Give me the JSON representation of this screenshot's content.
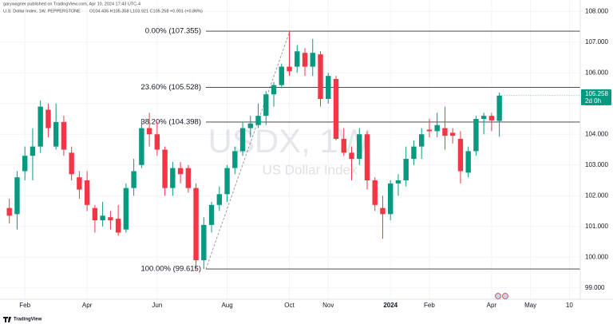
{
  "publisher": "garywagner published on TradingView.com, Apr 10, 2024 17:43 UTC-4",
  "footer": "TradingView",
  "chart_data": {
    "type": "candlestick",
    "title": "U.S. Dollar Index, 1W, PEPPERSTONE",
    "ohlc_text": "O104.435 H105.358 L103.921 C105.258 +0.901 (+0.86%)",
    "watermark": "USDX, 1W",
    "watermark_subtitle": "US Dollar Index",
    "countdown": "2d 0h",
    "up_color": "#089981",
    "down_color": "#f23645",
    "grid": true,
    "xlim": [
      -1.2,
      73.4
    ],
    "xticks": [
      {
        "value": 2,
        "label": "Feb"
      },
      {
        "value": 10,
        "label": "Apr"
      },
      {
        "value": 19,
        "label": "Jun"
      },
      {
        "value": 28,
        "label": "Aug"
      },
      {
        "value": 36,
        "label": "Oct"
      },
      {
        "value": 41,
        "label": "Nov"
      },
      {
        "value": 49,
        "label": "2024"
      },
      {
        "value": 54,
        "label": "Feb"
      },
      {
        "value": 62,
        "label": "Apr"
      },
      {
        "value": 67,
        "label": "May"
      },
      {
        "value": 72,
        "label": "10"
      }
    ],
    "ylim": [
      98.63,
      108.37
    ],
    "yticks": [
      {
        "value": 99,
        "label": "99.000"
      },
      {
        "value": 100,
        "label": "100.000"
      },
      {
        "value": 101,
        "label": "101.000"
      },
      {
        "value": 102,
        "label": "102.000"
      },
      {
        "value": 103,
        "label": "103.000"
      },
      {
        "value": 104,
        "label": "104.000"
      },
      {
        "value": 105,
        "label": "105.000"
      },
      {
        "value": 106,
        "label": "106.000"
      },
      {
        "value": 107,
        "label": "107.000"
      },
      {
        "value": 108,
        "label": "108.000"
      }
    ],
    "series": [
      {
        "open": [
          101.6,
          101.4,
          102.8,
          103.3,
          103.6,
          104.8,
          103.6,
          104.4,
          103.4,
          102.6,
          102.5,
          101.6,
          101.2,
          101.3,
          101.25,
          100.9,
          102.25,
          103.0,
          104.2,
          104.0,
          103.5,
          102.25,
          102.9,
          102.9,
          102.25,
          99.9,
          101.05,
          101.7,
          102.05,
          102.9,
          103.45,
          104.2,
          104.3,
          104.6,
          105.3,
          105.6,
          106.2,
          106.2,
          106.65,
          106.2,
          106.6,
          105.15,
          105.8,
          103.85,
          103.4,
          103.2,
          104.0,
          102.5,
          101.6,
          101.4,
          102.4,
          102.5,
          103.2,
          103.6,
          104.15,
          104.1,
          104.2,
          104.05,
          103.85,
          102.75,
          103.45,
          104.5,
          104.6,
          104.435
        ],
        "high": [
          101.9,
          102.8,
          103.6,
          104.2,
          105.1,
          105.0,
          105.0,
          104.6,
          103.6,
          102.8,
          102.8,
          101.7,
          101.8,
          101.5,
          101.7,
          102.4,
          103.2,
          104.5,
          104.7,
          104.4,
          103.6,
          103.1,
          103.1,
          103.0,
          102.4,
          101.3,
          101.8,
          102.3,
          103.0,
          103.6,
          104.4,
          104.6,
          105.0,
          105.4,
          105.7,
          106.3,
          107.355,
          106.9,
          106.8,
          107.1,
          106.7,
          106.0,
          105.9,
          104.2,
          103.6,
          104.2,
          104.1,
          102.6,
          102.0,
          102.5,
          102.7,
          103.6,
          103.8,
          104.2,
          104.5,
          104.7,
          104.9,
          104.2,
          104.1,
          103.6,
          104.6,
          104.7,
          104.7,
          105.358
        ],
        "low": [
          101.1,
          100.9,
          102.5,
          102.5,
          103.4,
          103.9,
          103.5,
          103.3,
          102.5,
          101.9,
          101.5,
          100.8,
          101.0,
          100.9,
          100.7,
          100.8,
          102.0,
          102.9,
          103.6,
          103.3,
          102.0,
          102.0,
          102.4,
          102.1,
          99.6,
          99.615,
          100.8,
          101.5,
          101.8,
          102.7,
          103.3,
          103.9,
          104.2,
          104.3,
          104.9,
          105.5,
          105.9,
          106.0,
          105.9,
          105.9,
          104.9,
          105.0,
          103.8,
          103.3,
          102.5,
          103.0,
          102.2,
          101.5,
          100.6,
          101.2,
          102.0,
          102.3,
          103.0,
          103.2,
          103.9,
          103.9,
          103.5,
          103.7,
          102.4,
          102.6,
          103.3,
          104.0,
          104.1,
          103.921
        ],
        "close": [
          101.35,
          102.6,
          103.3,
          103.6,
          104.9,
          104.2,
          104.4,
          103.5,
          102.7,
          102.2,
          101.7,
          101.2,
          101.35,
          101.2,
          100.8,
          102.25,
          102.8,
          104.2,
          104.0,
          103.5,
          102.25,
          102.9,
          102.7,
          102.25,
          99.9,
          101.05,
          101.7,
          102.05,
          102.9,
          103.45,
          104.2,
          104.35,
          104.6,
          105.3,
          105.6,
          106.2,
          106.05,
          106.7,
          106.2,
          106.65,
          105.15,
          105.9,
          103.85,
          103.4,
          103.2,
          104.0,
          102.5,
          101.7,
          101.4,
          102.4,
          102.5,
          103.2,
          103.6,
          104.0,
          104.1,
          104.3,
          103.95,
          103.95,
          102.8,
          103.45,
          104.5,
          104.6,
          104.45,
          105.258
        ]
      }
    ],
    "fib_levels": [
      {
        "value": 107.355,
        "label": "0.00% (107.355)"
      },
      {
        "value": 105.528,
        "label": "23.60% (105.528)"
      },
      {
        "value": 104.398,
        "label": "38.20% (104.398)"
      },
      {
        "value": 99.615,
        "label": "100.00% (99.615)"
      }
    ]
  }
}
